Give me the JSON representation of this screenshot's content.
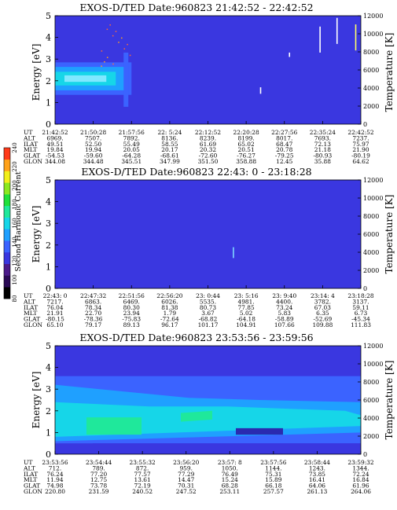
{
  "chart_data": [
    {
      "type": "heatmap",
      "title": "EXOS-D/TED   Date:960823  21:42:52 - 22:42:52",
      "ylabel": "Energy [eV]",
      "y2label": "Temperature [K]",
      "ylim": [
        0,
        5
      ],
      "y2lim": [
        0,
        12000
      ],
      "yticks": [
        "0",
        "1",
        "2",
        "3",
        "4",
        "5"
      ],
      "y2ticks": [
        "0",
        "2000",
        "4000",
        "6000",
        "8000",
        "10000",
        "12000"
      ],
      "background": "#3a37e0",
      "band": {
        "x_from": 0,
        "x_to": 2.0,
        "y_center": 2.1,
        "y_half": 0.75,
        "note_cells": "bright cyan core ~2.1 eV"
      },
      "spikes": [
        {
          "x": 6.05,
          "y0": 1.4,
          "y1": 1.7,
          "color": "#ffffff"
        },
        {
          "x": 6.9,
          "y0": 3.1,
          "y1": 3.3,
          "color": "#ffffff"
        },
        {
          "x": 7.8,
          "y0": 3.3,
          "y1": 4.5,
          "color": "#ffffff"
        },
        {
          "x": 8.3,
          "y0": 3.7,
          "y1": 4.9,
          "color": "#ffffff"
        },
        {
          "x": 8.85,
          "y0": 3.4,
          "y1": 4.6,
          "color": "#ffff66"
        }
      ],
      "table": {
        "labels": [
          "UT",
          "ALT",
          "ILAT",
          "MLT",
          "GLAT",
          "GLON"
        ],
        "columns": [
          [
            "21:42:52",
            "6969.",
            "49.51",
            "19.84",
            "-54.53",
            "344.08"
          ],
          [
            "21:50:28",
            "7507.",
            "52.50",
            "19.94",
            "-59.60",
            "344.48"
          ],
          [
            "21:57:56",
            "7892.",
            "55.49",
            "20.05",
            "-64.28",
            "345.51"
          ],
          [
            "22: 5:24",
            "8136.",
            "58.55",
            "20.17",
            "-68.61",
            "347.99"
          ],
          [
            "22:12:52",
            "8239.",
            "61.69",
            "20.32",
            "-72.60",
            "351.50"
          ],
          [
            "22:20:28",
            "8199.",
            "65.02",
            "20.51",
            "-76.27",
            "358.88"
          ],
          [
            "22:27:56",
            "8017.",
            "68.47",
            "20.78",
            "-79.25",
            "12.45"
          ],
          [
            "22:35:24",
            "7693.",
            "72.13",
            "21.18",
            "-80.93",
            "35.88"
          ],
          [
            "22:42:52",
            "7237.",
            "75.97",
            "21.90",
            "-80.19",
            "64.62"
          ]
        ]
      }
    },
    {
      "type": "heatmap",
      "title": "EXOS-D/TED   Date:960823  22:43: 0 - 23:18:28",
      "ylabel": "Energy [eV]",
      "y2label": "Temperature [K]",
      "ylim": [
        0,
        5
      ],
      "y2lim": [
        0,
        12000
      ],
      "yticks": [
        "0",
        "1",
        "2",
        "3",
        "4",
        "5"
      ],
      "y2ticks": [
        "0",
        "2000",
        "4000",
        "6000",
        "8000",
        "10000",
        "12000"
      ],
      "background": "#3a37e0",
      "spikes": [
        {
          "x": 5.25,
          "y0": 1.4,
          "y1": 1.9,
          "color": "#7fd8ff"
        }
      ],
      "table": {
        "labels": [
          "UT",
          "ALT",
          "ILAT",
          "MLT",
          "GLAT",
          "GLON"
        ],
        "columns": [
          [
            "22:43: 0",
            "7217.",
            "76.04",
            "21.91",
            "-80.15",
            "65.10"
          ],
          [
            "22:47:32",
            "6863.",
            "78.34",
            "22.70",
            "-78.36",
            "79.17"
          ],
          [
            "22:51:56",
            "6469.",
            "80.30",
            "23.94",
            "-75.83",
            "89.13"
          ],
          [
            "22:56:20",
            "6026.",
            "81.38",
            "1.79",
            "-72.64",
            "96.17"
          ],
          [
            "23: 0:44",
            "5535.",
            "80.73",
            "3.67",
            "-68.82",
            "101.17"
          ],
          [
            "23: 5:16",
            "4981.",
            "77.85",
            "5.02",
            "-64.18",
            "104.91"
          ],
          [
            "23: 9:40",
            "4400.",
            "73.24",
            "5.83",
            "-58.89",
            "107.66"
          ],
          [
            "23:14: 4",
            "3782.",
            "67.03",
            "6.35",
            "-52.69",
            "109.88"
          ],
          [
            "23:18:28",
            "3137.",
            "59.11",
            "6.73",
            "-45.34",
            "111.83"
          ]
        ]
      }
    },
    {
      "type": "heatmap",
      "title": "EXOS-D/TED   Date:960823  23:53:56 - 23:59:56",
      "ylabel": "Energy [eV]",
      "y2label": "Temperature [K]",
      "ylim": [
        0,
        5
      ],
      "y2lim": [
        0,
        12000
      ],
      "yticks": [
        "0",
        "1",
        "2",
        "3",
        "4",
        "5"
      ],
      "y2ticks": [
        "0",
        "2000",
        "4000",
        "6000",
        "8000",
        "10000",
        "12000"
      ],
      "background": "#3a37e0",
      "table": {
        "labels": [
          "UT",
          "ALT",
          "ILAT",
          "MLT",
          "GLAT",
          "GLON"
        ],
        "columns": [
          [
            "23:53:56",
            "712.",
            "76.24",
            "11.94",
            "74.98",
            "220.80"
          ],
          [
            "23:54:44",
            "789.",
            "77.20",
            "12.75",
            "73.78",
            "231.59"
          ],
          [
            "23:55:32",
            "872.",
            "77.57",
            "13.61",
            "72.19",
            "240.52"
          ],
          [
            "23:56:20",
            "959.",
            "77.29",
            "14.47",
            "70.31",
            "247.52"
          ],
          [
            "23:57: 8",
            "1050.",
            "76.49",
            "15.24",
            "68.28",
            "253.11"
          ],
          [
            "23:57:56",
            "1144.",
            "75.31",
            "15.89",
            "66.18",
            "257.57"
          ],
          [
            "23:58:44",
            "1243.",
            "73.85",
            "16.41",
            "64.06",
            "261.13"
          ],
          [
            "23:59:32",
            "1344.",
            "72.24",
            "16.84",
            "61.96",
            "264.06"
          ]
        ]
      }
    }
  ],
  "colorbar": {
    "label": "Second Harmonic Current",
    "ticks": [
      "80",
      "100",
      "120",
      "140",
      "160",
      "180",
      "200",
      "220",
      "240"
    ],
    "colors": [
      "#000000",
      "#2a0a55",
      "#4b1a8a",
      "#3a37e0",
      "#3b63ff",
      "#1fa0ff",
      "#16d6e8",
      "#1fe89b",
      "#1fe03a",
      "#8be81f",
      "#f2ef1a",
      "#ffa21a",
      "#ff3a1a"
    ]
  }
}
